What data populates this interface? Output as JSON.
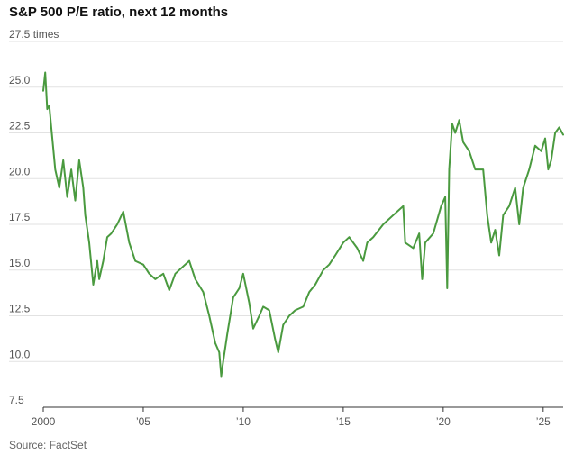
{
  "chart_data": {
    "type": "line",
    "title": "S&P 500 P/E ratio, next 12 months",
    "source": "Source: FactSet",
    "y_unit_suffix": "times",
    "y_ticks": [
      {
        "value": 7.5,
        "label": "7.5"
      },
      {
        "value": 10,
        "label": "10.0"
      },
      {
        "value": 12.5,
        "label": "12.5"
      },
      {
        "value": 15,
        "label": "15.0"
      },
      {
        "value": 17.5,
        "label": "17.5"
      },
      {
        "value": 20,
        "label": "20.0"
      },
      {
        "value": 22.5,
        "label": "22.5"
      },
      {
        "value": 25,
        "label": "25.0"
      },
      {
        "value": 27.5,
        "label": "27.5"
      }
    ],
    "x_ticks": [
      {
        "value": 2000,
        "label": "2000"
      },
      {
        "value": 2005,
        "label": "’05"
      },
      {
        "value": 2010,
        "label": "’10"
      },
      {
        "value": 2015,
        "label": "’15"
      },
      {
        "value": 2020,
        "label": "’20"
      },
      {
        "value": 2025,
        "label": "’25"
      }
    ],
    "xlim": [
      2000,
      2026
    ],
    "ylim": [
      7.5,
      27.5
    ],
    "grid": true,
    "legend": "none",
    "line_color": "#4a9a3f",
    "series": [
      {
        "x": [
          2000.0,
          2000.1,
          2000.2,
          2000.3,
          2000.4,
          2000.6,
          2000.8,
          2001.0,
          2001.2,
          2001.4,
          2001.6,
          2001.8,
          2002.0,
          2002.1,
          2002.3,
          2002.5,
          2002.7,
          2002.8,
          2003.0,
          2003.2,
          2003.4,
          2003.7,
          2004.0,
          2004.3,
          2004.6,
          2005.0,
          2005.3,
          2005.6,
          2006.0,
          2006.3,
          2006.6,
          2007.0,
          2007.3,
          2007.6,
          2008.0,
          2008.3,
          2008.6,
          2008.8,
          2008.9,
          2009.0,
          2009.2,
          2009.5,
          2009.8,
          2010.0,
          2010.3,
          2010.5,
          2010.8,
          2011.0,
          2011.3,
          2011.6,
          2011.75,
          2012.0,
          2012.3,
          2012.6,
          2013.0,
          2013.3,
          2013.6,
          2014.0,
          2014.3,
          2014.6,
          2015.0,
          2015.3,
          2015.7,
          2016.0,
          2016.2,
          2016.5,
          2017.0,
          2017.5,
          2018.0,
          2018.1,
          2018.5,
          2018.8,
          2018.95,
          2019.1,
          2019.5,
          2019.9,
          2020.1,
          2020.2,
          2020.3,
          2020.45,
          2020.6,
          2020.8,
          2021.0,
          2021.3,
          2021.6,
          2022.0,
          2022.2,
          2022.4,
          2022.6,
          2022.8,
          2023.0,
          2023.3,
          2023.6,
          2023.8,
          2024.0,
          2024.3,
          2024.6,
          2024.9,
          2025.1,
          2025.25,
          2025.4,
          2025.6,
          2025.8,
          2026.0
        ],
        "y": [
          24.8,
          25.8,
          23.8,
          24.0,
          22.8,
          20.5,
          19.5,
          21.0,
          19.0,
          20.5,
          18.8,
          21.0,
          19.5,
          18.0,
          16.5,
          14.2,
          15.5,
          14.5,
          15.5,
          16.8,
          17.0,
          17.5,
          18.2,
          16.5,
          15.5,
          15.3,
          14.8,
          14.5,
          14.8,
          13.9,
          14.8,
          15.2,
          15.5,
          14.5,
          13.8,
          12.5,
          11.0,
          10.5,
          9.2,
          10.0,
          11.5,
          13.5,
          14.0,
          14.8,
          13.2,
          11.8,
          12.5,
          13.0,
          12.8,
          11.2,
          10.5,
          12.0,
          12.5,
          12.8,
          13.0,
          13.8,
          14.2,
          15.0,
          15.3,
          15.8,
          16.5,
          16.8,
          16.2,
          15.5,
          16.5,
          16.8,
          17.5,
          18.0,
          18.5,
          16.5,
          16.2,
          17.0,
          14.5,
          16.5,
          17.0,
          18.5,
          19.0,
          14.0,
          20.5,
          23.0,
          22.5,
          23.2,
          22.0,
          21.5,
          20.5,
          20.5,
          18.0,
          16.5,
          17.2,
          15.8,
          18.0,
          18.5,
          19.5,
          17.5,
          19.5,
          20.5,
          21.8,
          21.5,
          22.2,
          20.5,
          21.0,
          22.5,
          22.8,
          22.4
        ]
      }
    ]
  }
}
